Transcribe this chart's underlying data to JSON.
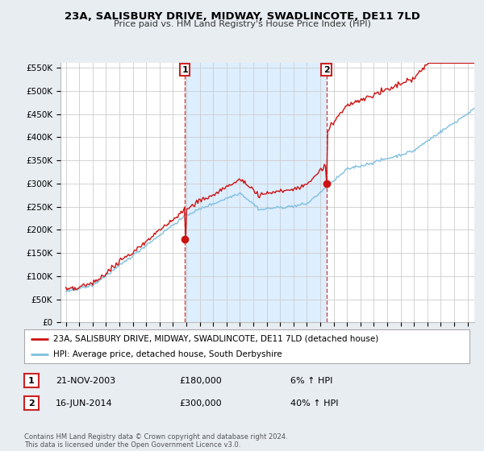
{
  "title_line1": "23A, SALISBURY DRIVE, MIDWAY, SWADLINCOTE, DE11 7LD",
  "title_line2": "Price paid vs. HM Land Registry's House Price Index (HPI)",
  "ylim": [
    0,
    560000
  ],
  "yticks": [
    0,
    50000,
    100000,
    150000,
    200000,
    250000,
    300000,
    350000,
    400000,
    450000,
    500000,
    550000
  ],
  "ytick_labels": [
    "£0",
    "£50K",
    "£100K",
    "£150K",
    "£200K",
    "£250K",
    "£300K",
    "£350K",
    "£400K",
    "£450K",
    "£500K",
    "£550K"
  ],
  "background_color": "#f0f4f8",
  "plot_bg_color": "#ffffff",
  "grid_color": "#cccccc",
  "hpi_color": "#7fbfdf",
  "price_color": "#cc1111",
  "shade_color": "#ddeeff",
  "sale1_x": 2003.9,
  "sale1_y": 180000,
  "sale1_label": "1",
  "sale2_x": 2014.45,
  "sale2_y": 300000,
  "sale2_label": "2",
  "legend_line1": "23A, SALISBURY DRIVE, MIDWAY, SWADLINCOTE, DE11 7LD (detached house)",
  "legend_line2": "HPI: Average price, detached house, South Derbyshire",
  "table_row1_num": "1",
  "table_row1_date": "21-NOV-2003",
  "table_row1_price": "£180,000",
  "table_row1_hpi": "6% ↑ HPI",
  "table_row2_num": "2",
  "table_row2_date": "16-JUN-2014",
  "table_row2_price": "£300,000",
  "table_row2_hpi": "40% ↑ HPI",
  "footer": "Contains HM Land Registry data © Crown copyright and database right 2024.\nThis data is licensed under the Open Government Licence v3.0.",
  "vline_color": "#cc2222",
  "marker_color": "#cc1111",
  "xmin": 1995,
  "xmax": 2025
}
